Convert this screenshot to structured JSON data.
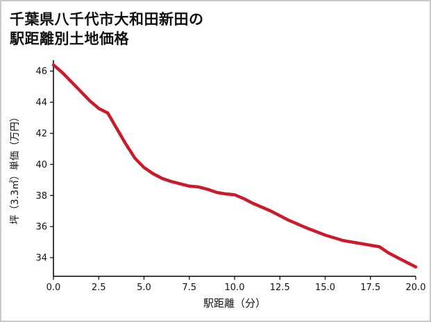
{
  "title": {
    "line1": "千葉県八千代市大和田新田の",
    "line2": "駅距離別土地価格"
  },
  "chart_data": {
    "type": "line",
    "title": "千葉県八千代市大和田新田の駅距離別土地価格",
    "xlabel": "駅距離（分）",
    "ylabel": "坪（3.3㎡）単価（万円）",
    "xlim": [
      0,
      20
    ],
    "ylim": [
      32.8,
      46.7
    ],
    "x_tick_values": [
      0,
      2.5,
      5,
      7.5,
      10,
      12.5,
      15,
      17.5,
      20
    ],
    "x_tick_labels": [
      "0.0",
      "2.5",
      "5.0",
      "7.5",
      "10.0",
      "12.5",
      "15.0",
      "17.5",
      "20.0"
    ],
    "y_tick_values": [
      34,
      36,
      38,
      40,
      42,
      44,
      46
    ],
    "y_tick_labels": [
      "34",
      "36",
      "38",
      "40",
      "42",
      "44",
      "46"
    ],
    "grid": false,
    "legend": false,
    "line_color": "#cb1b2a",
    "axis_color": "#000000",
    "x": [
      0,
      0.5,
      1,
      1.5,
      2,
      2.5,
      3,
      3.5,
      4,
      4.5,
      5,
      5.5,
      6,
      6.5,
      7,
      7.5,
      8,
      8.5,
      9,
      9.5,
      10,
      10.5,
      11,
      12,
      13,
      14,
      15,
      16,
      17,
      17.5,
      18,
      18.5,
      19,
      20
    ],
    "values": [
      46.4,
      45.9,
      45.3,
      44.7,
      44.1,
      43.6,
      43.3,
      42.3,
      41.3,
      40.4,
      39.8,
      39.4,
      39.1,
      38.9,
      38.75,
      38.6,
      38.55,
      38.4,
      38.2,
      38.1,
      38.05,
      37.8,
      37.5,
      37.0,
      36.4,
      35.9,
      35.45,
      35.1,
      34.9,
      34.8,
      34.7,
      34.3,
      34.0,
      33.4
    ]
  }
}
